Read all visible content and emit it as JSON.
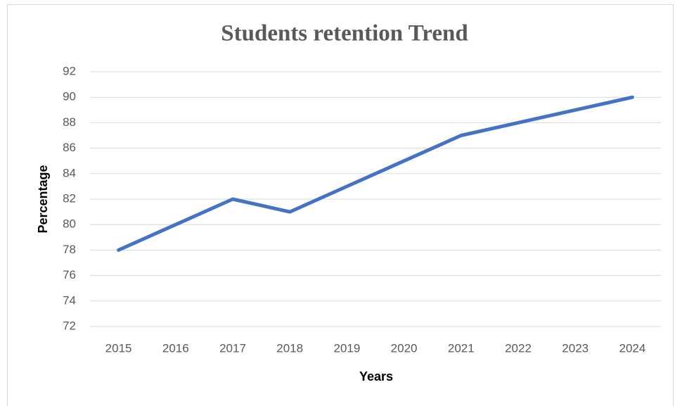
{
  "chart_data": {
    "type": "line",
    "title": "Students retention Trend",
    "x_label": "Years",
    "y_label": "Percentage",
    "categories": [
      "2015",
      "2016",
      "2017",
      "2018",
      "2019",
      "2020",
      "2021",
      "2022",
      "2023",
      "2024"
    ],
    "series": [
      {
        "name": "Percentage",
        "color": "#4472c4",
        "values": [
          78,
          80,
          82,
          81,
          83,
          85,
          87,
          88,
          89,
          90
        ]
      }
    ],
    "ylim": [
      72,
      92
    ],
    "yticks": [
      72,
      74,
      76,
      78,
      80,
      82,
      84,
      86,
      88,
      90,
      92
    ],
    "grid": true
  }
}
